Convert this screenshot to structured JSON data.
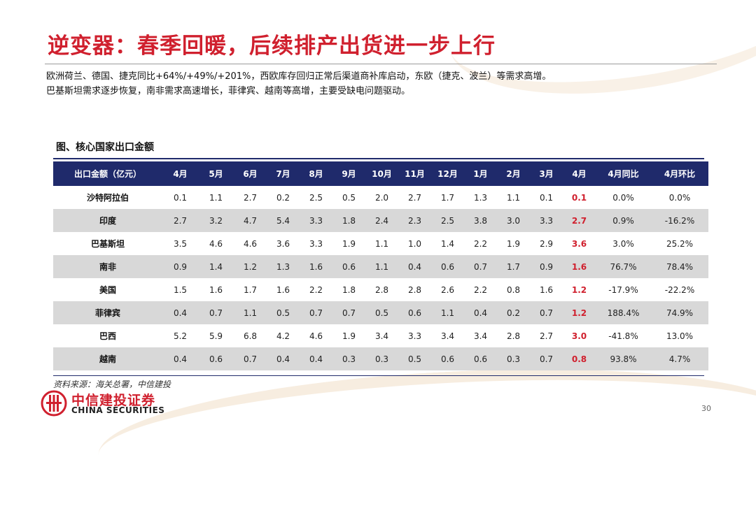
{
  "slide": {
    "title": "逆变器：春季回暖，后续排产出货进一步上行",
    "description_lines": [
      "欧洲荷兰、德国、捷克同比+64%/+49%/+201%，西欧库存回归正常后渠道商补库启动，东欧（捷克、波兰）等需求高增。",
      "巴基斯坦需求逐步恢复，南非需求高速增长，菲律宾、越南等高增，主要受缺电问题驱动。"
    ],
    "figure_title": "图、核心国家出口金额",
    "source": "资料来源：海关总署，中信建投",
    "page_number": "30",
    "logo_cn": "中信建投证券",
    "logo_en": "CHINA SECURITIES",
    "accent_color": "#d0202e",
    "header_color": "#1f2a6b"
  },
  "table": {
    "headers": [
      "出口金额（亿元）",
      "4月",
      "5月",
      "6月",
      "7月",
      "8月",
      "9月",
      "10月",
      "11月",
      "12月",
      "1月",
      "2月",
      "3月",
      "4月",
      "4月同比",
      "4月环比"
    ],
    "rows": [
      [
        "沙特阿拉伯",
        "0.1",
        "1.1",
        "2.7",
        "0.2",
        "2.5",
        "0.5",
        "2.0",
        "2.7",
        "1.7",
        "1.3",
        "1.1",
        "0.1",
        "0.1",
        "0.0%",
        "0.0%"
      ],
      [
        "印度",
        "2.7",
        "3.2",
        "4.7",
        "5.4",
        "3.3",
        "1.8",
        "2.4",
        "2.3",
        "2.5",
        "3.8",
        "3.0",
        "3.3",
        "2.7",
        "0.9%",
        "-16.2%"
      ],
      [
        "巴基斯坦",
        "3.5",
        "4.6",
        "4.6",
        "3.6",
        "3.3",
        "1.9",
        "1.1",
        "1.0",
        "1.4",
        "2.2",
        "1.9",
        "2.9",
        "3.6",
        "3.0%",
        "25.2%"
      ],
      [
        "南非",
        "0.9",
        "1.4",
        "1.2",
        "1.3",
        "1.6",
        "0.6",
        "1.1",
        "0.4",
        "0.6",
        "0.7",
        "1.7",
        "0.9",
        "1.6",
        "76.7%",
        "78.4%"
      ],
      [
        "美国",
        "1.5",
        "1.6",
        "1.7",
        "1.6",
        "2.2",
        "1.8",
        "2.8",
        "2.8",
        "2.6",
        "2.2",
        "0.8",
        "1.6",
        "1.2",
        "-17.9%",
        "-22.2%"
      ],
      [
        "菲律宾",
        "0.4",
        "0.7",
        "1.1",
        "0.5",
        "0.7",
        "0.7",
        "0.5",
        "0.6",
        "1.1",
        "0.4",
        "0.2",
        "0.7",
        "1.2",
        "188.4%",
        "74.9%"
      ],
      [
        "巴西",
        "5.2",
        "5.9",
        "6.8",
        "4.2",
        "4.6",
        "1.9",
        "3.4",
        "3.3",
        "3.4",
        "3.4",
        "2.8",
        "2.7",
        "3.0",
        "-41.8%",
        "13.0%"
      ],
      [
        "越南",
        "0.4",
        "0.6",
        "0.7",
        "0.4",
        "0.4",
        "0.3",
        "0.3",
        "0.5",
        "0.6",
        "0.6",
        "0.3",
        "0.7",
        "0.8",
        "93.8%",
        "4.7%"
      ]
    ]
  }
}
